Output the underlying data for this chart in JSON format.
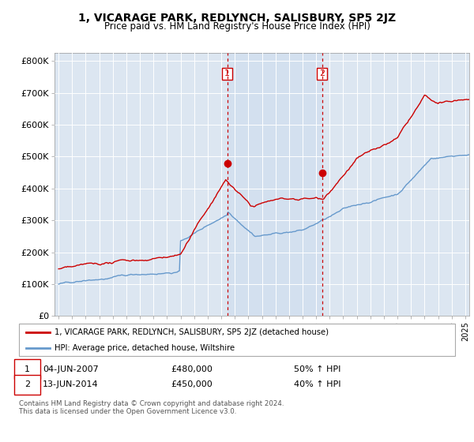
{
  "title": "1, VICARAGE PARK, REDLYNCH, SALISBURY, SP5 2JZ",
  "subtitle": "Price paid vs. HM Land Registry's House Price Index (HPI)",
  "legend_line1": "1, VICARAGE PARK, REDLYNCH, SALISBURY, SP5 2JZ (detached house)",
  "legend_line2": "HPI: Average price, detached house, Wiltshire",
  "transaction1_date": "04-JUN-2007",
  "transaction1_price": "£480,000",
  "transaction1_hpi": "50% ↑ HPI",
  "transaction2_date": "13-JUN-2014",
  "transaction2_price": "£450,000",
  "transaction2_hpi": "40% ↑ HPI",
  "footer": "Contains HM Land Registry data © Crown copyright and database right 2024.\nThis data is licensed under the Open Government Licence v3.0.",
  "red_color": "#cc0000",
  "blue_color": "#6699cc",
  "blue_fill_color": "#dce9f5",
  "background_color": "#dce6f1",
  "ylim": [
    0,
    825000
  ],
  "yticks": [
    0,
    100000,
    200000,
    300000,
    400000,
    500000,
    600000,
    700000,
    800000
  ],
  "ytick_labels": [
    "£0",
    "£100K",
    "£200K",
    "£300K",
    "£400K",
    "£500K",
    "£600K",
    "£700K",
    "£800K"
  ],
  "transaction1_x": 2007.44,
  "transaction1_y": 480000,
  "transaction2_x": 2014.44,
  "transaction2_y": 450000,
  "vline1_x": 2007.44,
  "vline2_x": 2014.44,
  "xlim_left": 1994.7,
  "xlim_right": 2025.3
}
